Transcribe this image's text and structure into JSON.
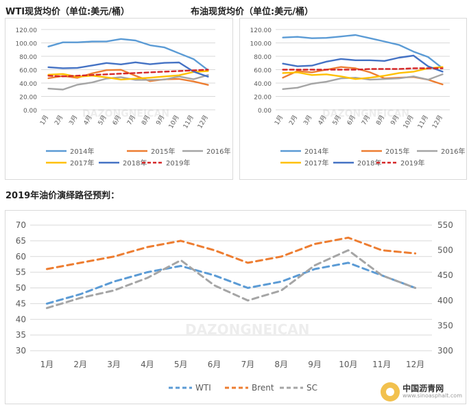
{
  "titles": {
    "wti": "WTI现货均价（单位:美元/桶）",
    "brent": "布油现货均价（单位:美元/桶）",
    "forecast": "2019年油价演绎路径预判："
  },
  "watermark": {
    "text": "DAZONGNEICAN"
  },
  "logo": {
    "name": "中国沥青网",
    "url": "www.sinoasphalt.com"
  },
  "chart_data": [
    {
      "type": "line",
      "categories": [
        "1月",
        "2月",
        "3月",
        "4月",
        "5月",
        "6月",
        "7月",
        "8月",
        "9月",
        "10月",
        "11月",
        "12月"
      ],
      "ylim": [
        0,
        120
      ],
      "yticks": [
        "0.00",
        "20.00",
        "40.00",
        "60.00",
        "80.00",
        "100.00",
        "120.00"
      ],
      "legend_position": "bottom",
      "series": [
        {
          "name": "2014年",
          "color": "#5b9bd5",
          "dashed": false,
          "values": [
            94.6,
            100.8,
            100.8,
            102.1,
            102.2,
            105.8,
            103.6,
            96.5,
            93.2,
            84.4,
            75.8,
            59.3
          ]
        },
        {
          "name": "2015年",
          "color": "#ed7d31",
          "dashed": false,
          "values": [
            47.2,
            50.6,
            47.8,
            54.5,
            59.3,
            59.8,
            50.9,
            42.9,
            45.5,
            46.2,
            42.4,
            37.2
          ]
        },
        {
          "name": "2016年",
          "color": "#a5a5a5",
          "dashed": false,
          "values": [
            31.7,
            30.3,
            37.5,
            40.8,
            46.7,
            48.8,
            44.7,
            44.7,
            45.2,
            49.8,
            45.7,
            52.0
          ]
        },
        {
          "name": "2017年",
          "color": "#ffc000",
          "dashed": false,
          "values": [
            52.5,
            53.5,
            49.3,
            51.1,
            48.5,
            45.2,
            46.6,
            48.0,
            49.8,
            51.6,
            56.6,
            57.9
          ]
        },
        {
          "name": "2018年",
          "color": "#4472c4",
          "dashed": false,
          "values": [
            63.7,
            62.2,
            62.7,
            66.3,
            70.0,
            67.9,
            71.0,
            68.1,
            70.2,
            70.8,
            57.0,
            49.5
          ]
        },
        {
          "name": "2019年",
          "color": "#d62728",
          "dashed": true,
          "values": [
            51,
            50,
            51,
            52,
            53,
            54,
            55,
            56,
            57,
            58,
            59,
            60
          ]
        }
      ]
    },
    {
      "type": "line",
      "categories": [
        "1月",
        "2月",
        "3月",
        "4月",
        "5月",
        "6月",
        "7月",
        "8月",
        "9月",
        "10月",
        "11月",
        "12月"
      ],
      "ylim": [
        0,
        120
      ],
      "yticks": [
        "0.00",
        "20.00",
        "40.00",
        "60.00",
        "80.00",
        "100.00",
        "120.00"
      ],
      "legend_position": "bottom",
      "series": [
        {
          "name": "2014年",
          "color": "#5b9bd5",
          "dashed": false,
          "values": [
            108,
            109,
            107,
            107.5,
            109.5,
            111.8,
            107,
            102,
            97,
            87,
            79,
            62
          ]
        },
        {
          "name": "2015年",
          "color": "#ed7d31",
          "dashed": false,
          "values": [
            48,
            58,
            56,
            60,
            64,
            62,
            56,
            47,
            48,
            49,
            45,
            38
          ]
        },
        {
          "name": "2016年",
          "color": "#a5a5a5",
          "dashed": false,
          "values": [
            31,
            33,
            39,
            42,
            47,
            48,
            45,
            46,
            47,
            50,
            45,
            53
          ]
        },
        {
          "name": "2017年",
          "color": "#ffc000",
          "dashed": false,
          "values": [
            55,
            56,
            52,
            53,
            50,
            46,
            48,
            51,
            55,
            57,
            62,
            64
          ]
        },
        {
          "name": "2018年",
          "color": "#4472c4",
          "dashed": false,
          "values": [
            69,
            65,
            66,
            72,
            76,
            74,
            74,
            73,
            78,
            81,
            65,
            57
          ]
        },
        {
          "name": "2019年",
          "color": "#d62728",
          "dashed": true,
          "values": [
            60,
            60,
            60,
            60,
            60,
            60,
            61,
            61,
            61,
            62,
            62,
            62
          ]
        }
      ]
    },
    {
      "type": "line",
      "categories": [
        "1月",
        "2月",
        "3月",
        "4月",
        "5月",
        "6月",
        "7月",
        "8月",
        "9月",
        "10月",
        "11月",
        "12月"
      ],
      "ylim": [
        30,
        70
      ],
      "yticks": [
        "30",
        "35",
        "40",
        "45",
        "50",
        "55",
        "60",
        "65",
        "70"
      ],
      "y2lim": [
        300,
        550
      ],
      "y2ticks": [
        "300",
        "350",
        "400",
        "450",
        "500",
        "550"
      ],
      "legend_position": "bottom",
      "series": [
        {
          "name": "WTI",
          "color": "#5b9bd5",
          "dashed": true,
          "axis": "left",
          "values": [
            45,
            48,
            52,
            55,
            57,
            54,
            50,
            52,
            56,
            58,
            54,
            50
          ]
        },
        {
          "name": "Brent",
          "color": "#ed7d31",
          "dashed": true,
          "axis": "left",
          "values": [
            56,
            58,
            60,
            63,
            65,
            62,
            58,
            60,
            64,
            66,
            62,
            61
          ]
        },
        {
          "name": "SC",
          "color": "#a5a5a5",
          "dashed": true,
          "axis": "right",
          "values": [
            385,
            405,
            420,
            445,
            480,
            430,
            400,
            420,
            470,
            500,
            450,
            425
          ]
        }
      ]
    }
  ]
}
